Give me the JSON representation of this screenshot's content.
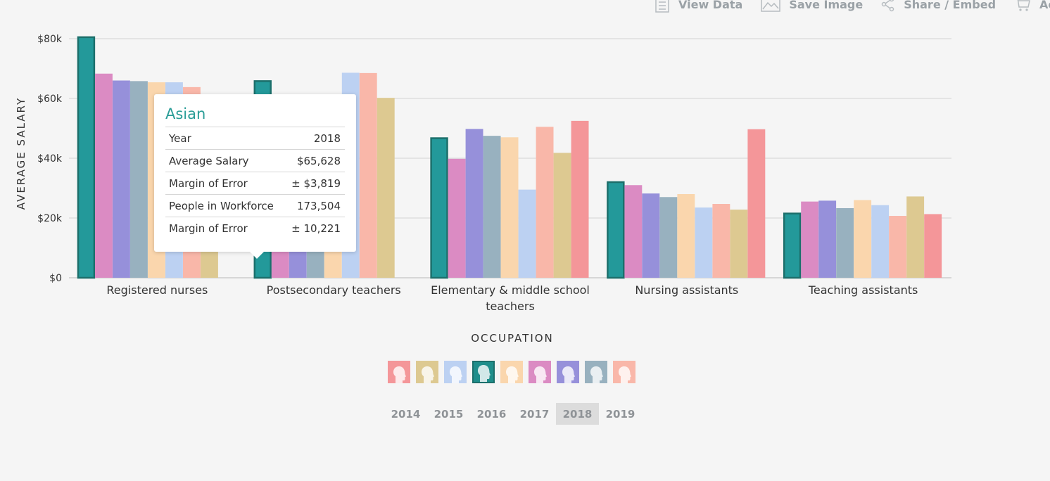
{
  "toolbar": {
    "items": [
      {
        "label": "View Data",
        "icon": "document-icon"
      },
      {
        "label": "Save Image",
        "icon": "image-icon"
      },
      {
        "label": "Share / Embed",
        "icon": "share-icon"
      },
      {
        "label": "Ac",
        "icon": "cart-icon"
      }
    ]
  },
  "chart_data": {
    "type": "bar",
    "ylabel": "AVERAGE SALARY",
    "xlabel": "OCCUPATION",
    "ylim": [
      0,
      80000
    ],
    "yticks": [
      {
        "value": 0,
        "label": "$0"
      },
      {
        "value": 20000,
        "label": "$20k"
      },
      {
        "value": 40000,
        "label": "$40k"
      },
      {
        "value": 60000,
        "label": "$60k"
      },
      {
        "value": 80000,
        "label": "$80k"
      }
    ],
    "grid": true,
    "categories": [
      [
        "Registered nurses"
      ],
      [
        "Postsecondary teachers"
      ],
      [
        "Elementary & middle school",
        "teachers"
      ],
      [
        "Nursing assistants"
      ],
      [
        "Teaching assistants"
      ]
    ],
    "series": [
      {
        "color": "#23999a",
        "highlight": true,
        "values": [
          80500,
          65800,
          46700,
          32000,
          21500
        ]
      },
      {
        "color": "#db8bc3",
        "values": [
          68300,
          40000,
          39800,
          31000,
          25500
        ]
      },
      {
        "color": "#9690da",
        "values": [
          66000,
          38000,
          49800,
          28200,
          25800
        ]
      },
      {
        "color": "#98b1bf",
        "values": [
          65800,
          38000,
          47500,
          27000,
          23300
        ]
      },
      {
        "color": "#fad6ad",
        "values": [
          65400,
          38000,
          47000,
          28000,
          26000
        ]
      },
      {
        "color": "#bcd1f2",
        "values": [
          65400,
          68600,
          29500,
          23500,
          24300
        ]
      },
      {
        "color": "#f9b7a9",
        "values": [
          63800,
          68500,
          50500,
          24700,
          20700
        ]
      },
      {
        "color": "#ddc991",
        "values": [
          60000,
          60200,
          41800,
          22800,
          27200
        ]
      },
      {
        "color": "#f49699",
        "values": [
          null,
          null,
          52500,
          49700,
          21300
        ]
      }
    ]
  },
  "tooltip": {
    "title": "Asian",
    "rows": [
      {
        "label": "Year",
        "value": "2018"
      },
      {
        "label": "Average Salary",
        "value": "$65,628"
      },
      {
        "label": "Margin of Error",
        "value": "± $3,819"
      },
      {
        "label": "People in Workforce",
        "value": "173,504"
      },
      {
        "label": "Margin of Error",
        "value": "± 10,221"
      }
    ]
  },
  "legend": {
    "icons": [
      {
        "color": "#f49699",
        "icon": "person-head-icon"
      },
      {
        "color": "#ddc991",
        "icon": "person-head-icon"
      },
      {
        "color": "#bcd1f2",
        "icon": "person-head-icon"
      },
      {
        "color": "#1f8e8b",
        "icon": "person-head-icon",
        "active": true
      },
      {
        "color": "#fad6ad",
        "icon": "person-head-icon"
      },
      {
        "color": "#db8bc3",
        "icon": "person-head-icon"
      },
      {
        "color": "#9690da",
        "icon": "person-head-icon"
      },
      {
        "color": "#98b1bf",
        "icon": "person-head-icon"
      },
      {
        "color": "#f9b7a9",
        "icon": "person-head-icon"
      }
    ]
  },
  "years": {
    "items": [
      "2014",
      "2015",
      "2016",
      "2017",
      "2018",
      "2019"
    ],
    "selected": "2018"
  }
}
